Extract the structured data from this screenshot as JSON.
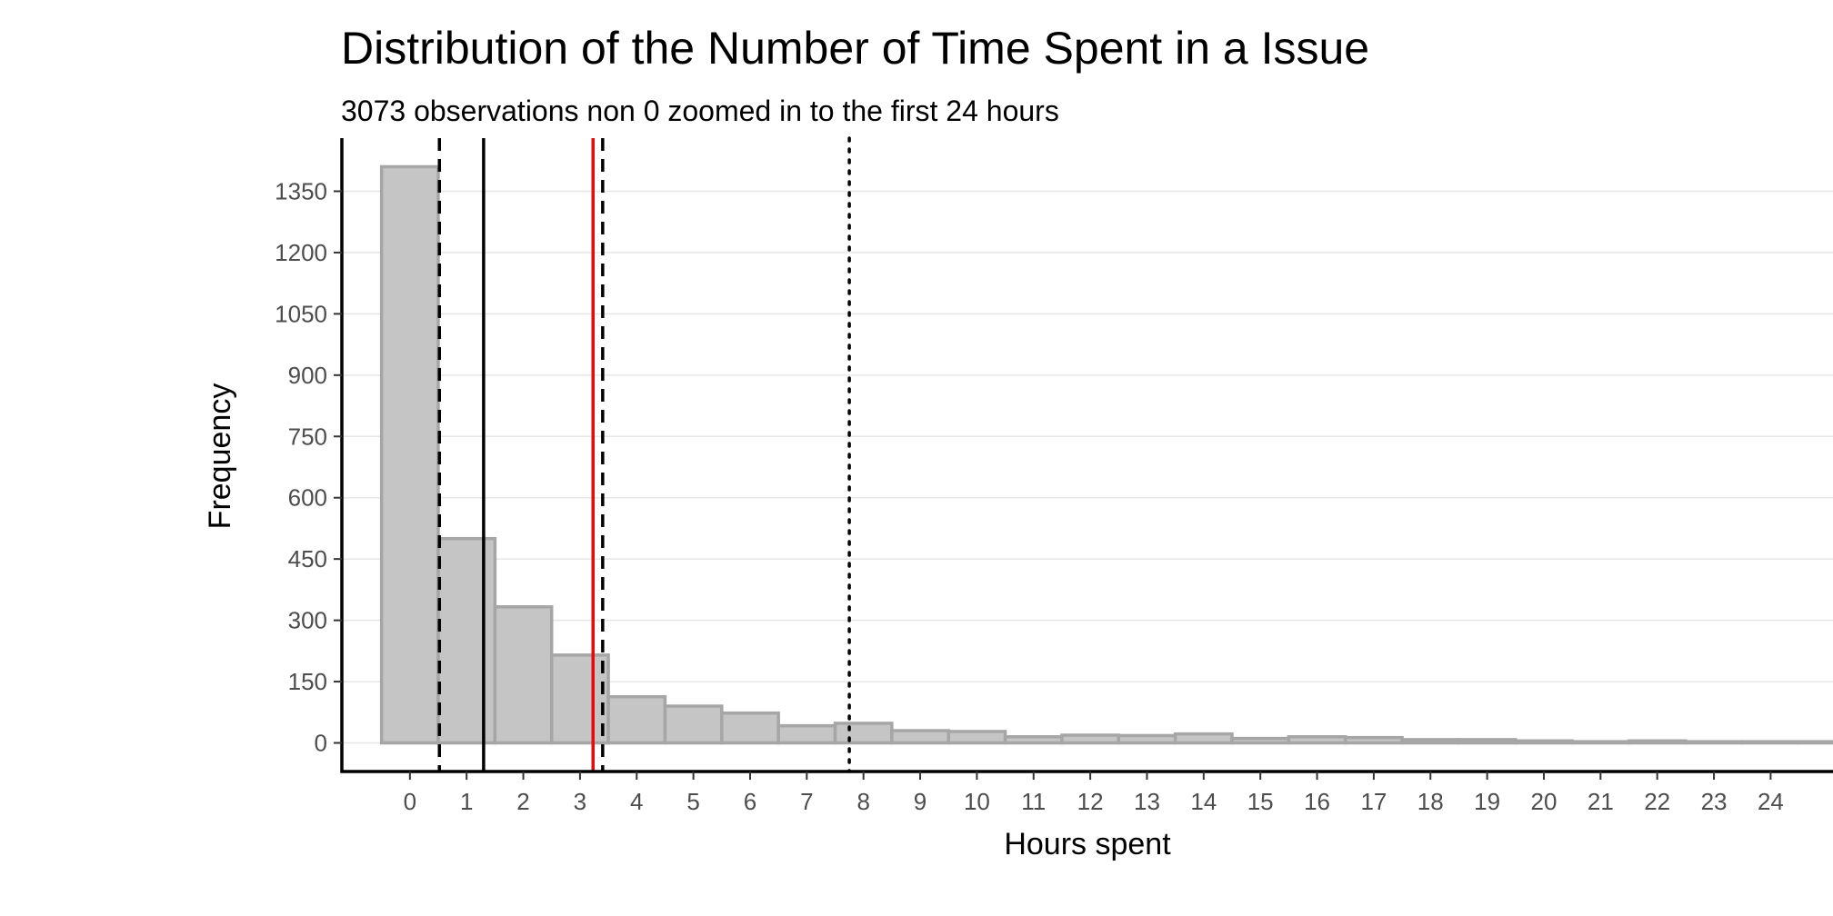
{
  "chart_data": {
    "type": "bar",
    "title": "Distribution of the Number of Time Spent in a Issue",
    "subtitle": "3073 observations non 0 zoomed in to the first 24 hours",
    "xlabel": "Hours spent",
    "ylabel": "Frequency",
    "xlim": [
      -1.2,
      25.1
    ],
    "ylim": [
      -70,
      1480
    ],
    "x_ticks": [
      0,
      1,
      2,
      3,
      4,
      5,
      6,
      7,
      8,
      9,
      10,
      11,
      12,
      13,
      14,
      15,
      16,
      17,
      18,
      19,
      20,
      21,
      22,
      23,
      24
    ],
    "y_ticks": [
      0,
      150,
      300,
      450,
      600,
      750,
      900,
      1050,
      1200,
      1350
    ],
    "grid": "horizontal",
    "bins": [
      {
        "x0": 0,
        "x1": 1,
        "value": 1410
      },
      {
        "x0": 1,
        "x1": 2,
        "value": 500
      },
      {
        "x0": 2,
        "x1": 3,
        "value": 333
      },
      {
        "x0": 3,
        "x1": 4,
        "value": 215
      },
      {
        "x0": 4,
        "x1": 5,
        "value": 113
      },
      {
        "x0": 5,
        "x1": 6,
        "value": 90
      },
      {
        "x0": 6,
        "x1": 7,
        "value": 73
      },
      {
        "x0": 7,
        "x1": 8,
        "value": 42
      },
      {
        "x0": 8,
        "x1": 9,
        "value": 48
      },
      {
        "x0": 9,
        "x1": 10,
        "value": 30
      },
      {
        "x0": 10,
        "x1": 11,
        "value": 28
      },
      {
        "x0": 11,
        "x1": 12,
        "value": 15
      },
      {
        "x0": 12,
        "x1": 13,
        "value": 19
      },
      {
        "x0": 13,
        "x1": 14,
        "value": 18
      },
      {
        "x0": 14,
        "x1": 15,
        "value": 22
      },
      {
        "x0": 15,
        "x1": 16,
        "value": 11
      },
      {
        "x0": 16,
        "x1": 17,
        "value": 15
      },
      {
        "x0": 17,
        "x1": 18,
        "value": 13
      },
      {
        "x0": 18,
        "x1": 19,
        "value": 8
      },
      {
        "x0": 19,
        "x1": 20,
        "value": 8
      },
      {
        "x0": 20,
        "x1": 21,
        "value": 5
      },
      {
        "x0": 21,
        "x1": 22,
        "value": 3
      },
      {
        "x0": 22,
        "x1": 23,
        "value": 5
      },
      {
        "x0": 23,
        "x1": 24,
        "value": 3
      },
      {
        "x0": 24,
        "x1": 25,
        "value": 3
      },
      {
        "x0": 25,
        "x1": 26,
        "value": 3
      }
    ],
    "reference_lines": [
      {
        "x": 0.52,
        "style": "dashed",
        "color": "#000000"
      },
      {
        "x": 1.3,
        "style": "solid",
        "color": "#000000"
      },
      {
        "x": 3.23,
        "style": "solid",
        "color": "#ff0000"
      },
      {
        "x": 3.4,
        "style": "dashed",
        "color": "#000000"
      },
      {
        "x": 7.75,
        "style": "dotted",
        "color": "#000000"
      }
    ],
    "colors": {
      "bar_fill": "#c5c5c5",
      "bar_stroke": "#a6a6a6",
      "grid": "#e6e6e6",
      "axis": "#000000",
      "tick_label": "#4d4d4d"
    }
  }
}
